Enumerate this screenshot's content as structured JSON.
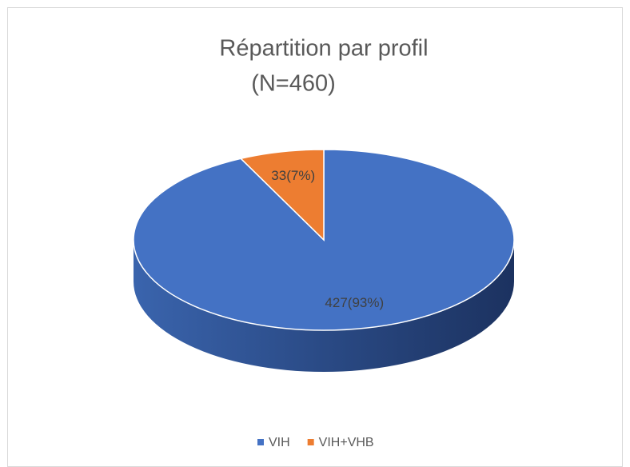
{
  "chart_data": {
    "type": "pie3d",
    "title": "Répartition par profil",
    "subtitle": "(N=460)",
    "categories": [
      "VIH",
      "VIH+VHB"
    ],
    "series": [
      {
        "name": "Profil",
        "values": [
          427,
          33
        ],
        "value_labels": [
          "427(93%)",
          "33(7%)"
        ],
        "colors": [
          "#4472c4",
          "#ed7d31"
        ]
      }
    ],
    "legend": "bottom"
  }
}
